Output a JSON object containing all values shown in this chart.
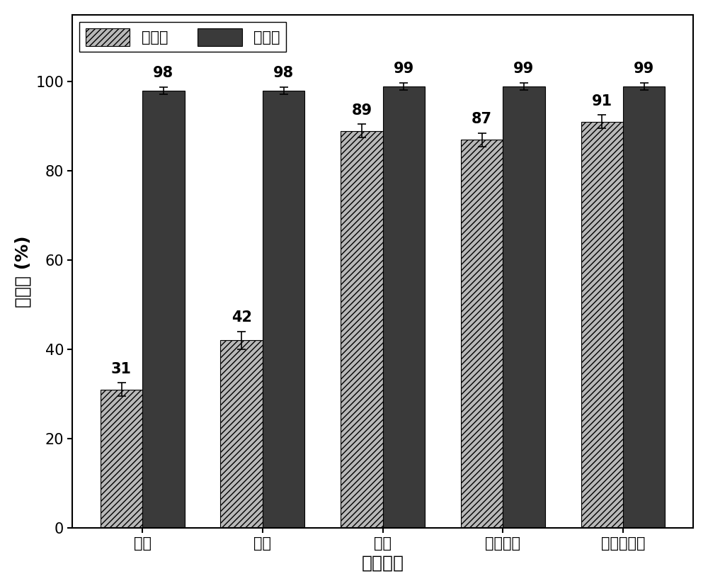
{
  "categories": [
    "氧气",
    "空气",
    "氮气",
    "二氧化碳",
    "未处理原矿"
  ],
  "pyrite_values": [
    31,
    42,
    89,
    87,
    91
  ],
  "galena_values": [
    98,
    98,
    99,
    99,
    99
  ],
  "pyrite_errors": [
    1.5,
    2.0,
    1.5,
    1.5,
    1.5
  ],
  "galena_errors": [
    0.8,
    0.8,
    0.8,
    0.8,
    0.8
  ],
  "pyrite_color": "#b8b8b8",
  "galena_color": "#3a3a3a",
  "pyrite_label": "黄铁矿",
  "galena_label": "方铅矿",
  "xlabel": "气体氛围",
  "ylabel": "回收率 (%)",
  "ylim": [
    0,
    115
  ],
  "yticks": [
    0,
    20,
    40,
    60,
    80,
    100
  ],
  "bar_width": 0.35,
  "label_fontsize": 18,
  "tick_fontsize": 15,
  "legend_fontsize": 15,
  "value_fontsize": 15,
  "background_color": "#ffffff"
}
